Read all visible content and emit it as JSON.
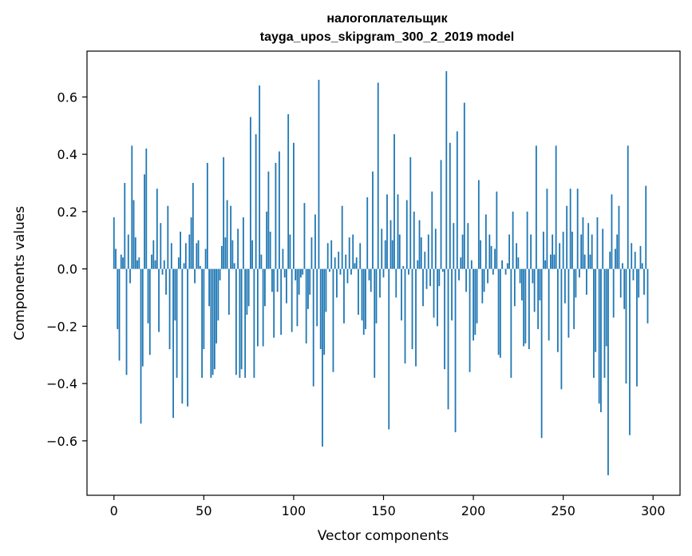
{
  "chart_data": {
    "type": "bar",
    "title_line1": "налогоплательщик",
    "title_line2": "tayga_upos_skipgram_300_2_2019 model",
    "xlabel": "Vector components",
    "ylabel": "Components values",
    "xlim": [
      -15,
      315
    ],
    "ylim": [
      -0.79,
      0.76
    ],
    "xticks": [
      0,
      50,
      100,
      150,
      200,
      250,
      300
    ],
    "xtick_labels": [
      "0",
      "50",
      "100",
      "150",
      "200",
      "250",
      "300"
    ],
    "yticks": [
      0.6,
      0.4,
      0.2,
      0.0,
      -0.2,
      -0.4,
      -0.6
    ],
    "ytick_labels": [
      "0.6",
      "0.4",
      "0.2",
      "0.0",
      "−0.2",
      "−0.4",
      "−0.6"
    ],
    "grid": false,
    "bar_color": "#1f77b4",
    "values": [
      0.18,
      0.07,
      -0.21,
      -0.32,
      0.05,
      0.04,
      0.3,
      -0.37,
      0.12,
      -0.05,
      0.43,
      0.24,
      0.11,
      0.03,
      0.04,
      -0.54,
      -0.34,
      0.33,
      0.42,
      -0.19,
      -0.3,
      0.05,
      0.1,
      0.03,
      0.28,
      -0.22,
      0.16,
      -0.02,
      0.03,
      -0.09,
      0.22,
      -0.28,
      0.09,
      -0.52,
      -0.18,
      -0.38,
      0.04,
      0.13,
      -0.47,
      0.02,
      0.09,
      -0.48,
      0.12,
      0.18,
      0.3,
      -0.05,
      0.09,
      0.1,
      0.01,
      -0.38,
      -0.28,
      0.07,
      0.37,
      -0.13,
      -0.38,
      -0.37,
      -0.35,
      -0.26,
      -0.18,
      -0.04,
      0.08,
      0.39,
      0.11,
      0.24,
      -0.16,
      0.22,
      0.1,
      0.02,
      -0.37,
      0.14,
      -0.38,
      -0.35,
      0.18,
      -0.38,
      -0.16,
      -0.13,
      0.53,
      0.1,
      -0.38,
      0.47,
      -0.27,
      0.64,
      0.05,
      -0.27,
      -0.13,
      0.2,
      0.34,
      0.13,
      -0.08,
      -0.24,
      0.37,
      -0.08,
      0.41,
      -0.23,
      0.07,
      -0.03,
      -0.12,
      0.54,
      0.12,
      -0.22,
      0.44,
      -0.04,
      -0.2,
      -0.09,
      -0.03,
      -0.02,
      0.23,
      -0.26,
      -0.14,
      -0.09,
      0.11,
      -0.41,
      0.19,
      -0.2,
      0.66,
      -0.28,
      -0.62,
      -0.3,
      -0.15,
      0.09,
      -0.01,
      0.1,
      -0.36,
      0.04,
      -0.1,
      0.06,
      -0.02,
      0.22,
      -0.19,
      0.05,
      -0.05,
      0.11,
      -0.02,
      0.12,
      0.02,
      0.04,
      -0.16,
      0.09,
      -0.18,
      -0.23,
      -0.21,
      0.25,
      -0.04,
      -0.08,
      0.34,
      -0.38,
      -0.19,
      0.65,
      -0.1,
      0.14,
      -0.03,
      0.1,
      0.26,
      -0.56,
      0.17,
      0.1,
      0.47,
      -0.1,
      0.26,
      0.12,
      -0.18,
      0.01,
      -0.33,
      0.24,
      -0.02,
      0.39,
      -0.28,
      0.2,
      -0.34,
      0.03,
      0.17,
      0.11,
      -0.13,
      0.06,
      -0.07,
      0.12,
      -0.06,
      0.27,
      -0.17,
      0.14,
      -0.2,
      -0.06,
      0.38,
      -0.01,
      -0.35,
      0.69,
      -0.49,
      0.44,
      -0.18,
      0.16,
      -0.57,
      0.48,
      -0.04,
      0.04,
      0.12,
      0.58,
      -0.08,
      0.16,
      -0.36,
      0.03,
      -0.25,
      -0.23,
      -0.19,
      0.31,
      0.1,
      -0.12,
      -0.08,
      0.19,
      -0.05,
      0.12,
      0.08,
      -0.02,
      0.07,
      0.27,
      -0.3,
      -0.31,
      0.03,
      0.0,
      -0.02,
      0.02,
      0.12,
      -0.38,
      0.2,
      -0.13,
      0.09,
      0.04,
      -0.05,
      -0.11,
      -0.27,
      -0.26,
      0.2,
      -0.28,
      0.12,
      -0.05,
      -0.15,
      0.43,
      -0.21,
      -0.11,
      -0.59,
      0.13,
      0.03,
      0.28,
      -0.25,
      0.05,
      0.12,
      0.05,
      0.43,
      -0.29,
      0.09,
      -0.42,
      0.13,
      -0.12,
      0.22,
      -0.24,
      0.28,
      0.13,
      -0.21,
      -0.1,
      0.28,
      -0.03,
      0.12,
      0.18,
      0.05,
      -0.09,
      0.16,
      0.05,
      0.12,
      -0.38,
      -0.29,
      0.18,
      -0.47,
      -0.5,
      0.14,
      -0.38,
      -0.27,
      -0.72,
      0.06,
      0.26,
      -0.17,
      0.07,
      0.12,
      0.22,
      -0.1,
      0.02,
      -0.14,
      -0.4,
      0.43,
      -0.58,
      0.09,
      -0.04,
      0.06,
      -0.41,
      -0.1,
      0.08,
      0.02,
      -0.09,
      0.29,
      -0.19
    ]
  }
}
